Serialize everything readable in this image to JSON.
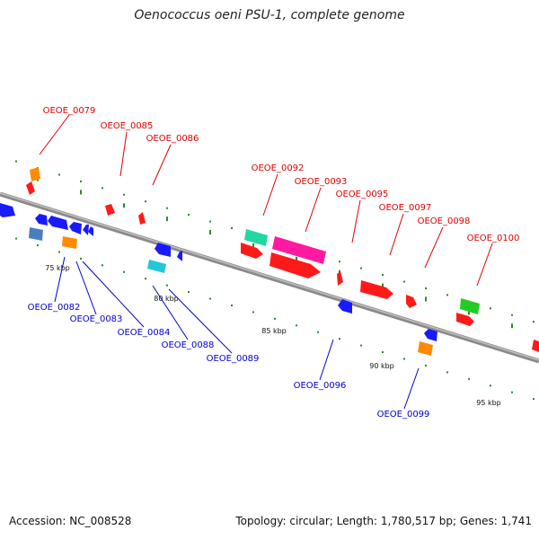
{
  "title": "Oenococcus oeni PSU-1, complete genome",
  "footer": {
    "accession": "Accession: NC_008528",
    "summary": "Topology: circular; Length: 1,780,517 bp; Genes: 1,741"
  },
  "colors": {
    "forward_label": "#e00000",
    "reverse_label": "#0000cc",
    "backbone": "#8a8a8a",
    "tick": "#2a8a2a"
  },
  "scale_labels": [
    "75 kbp",
    "80 kbp",
    "85 kbp",
    "90 kbp",
    "95 kbp"
  ],
  "labels_forward": [
    "OEOE_0079",
    "OEOE_0085",
    "OEOE_0086",
    "OEOE_0092",
    "OEOE_0093",
    "OEOE_0095",
    "OEOE_0097",
    "OEOE_0098",
    "OEOE_0100"
  ],
  "labels_reverse": [
    "OEOE_0082",
    "OEOE_0083",
    "OEOE_0084",
    "OEOE_0088",
    "OEOE_0089",
    "OEOE_0096",
    "OEOE_0099"
  ]
}
